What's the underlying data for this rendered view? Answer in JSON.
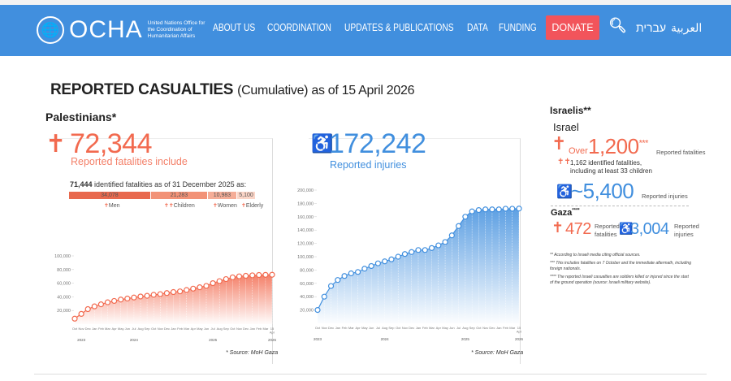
{
  "header": {
    "logo_text": "OCHA",
    "logo_subtitle": "United Nations Office for the Coordination of Humanitarian Affairs",
    "nav": [
      "ABOUT US",
      "COORDINATION",
      "UPDATES & PUBLICATIONS",
      "DATA",
      "FUNDING"
    ],
    "donate": "DONATE",
    "lang_he": "עברית",
    "lang_ar": "العربية"
  },
  "title": {
    "main": "REPORTED CASUALTIES",
    "suffix": "(Cumulative) as of 15 April 2026"
  },
  "palestinians": {
    "heading": "Palestinians*",
    "fatalities": "72,344",
    "fatalities_label": "Reported fatalities include",
    "injuries": "172,242",
    "injuries_label": "Reported injuries",
    "identified_bold": "71,444",
    "identified_text": "identified fatalities as of 31 December 2025 as:",
    "breakdown": [
      {
        "label": "Men",
        "value": "34,078",
        "color": "#e8694e"
      },
      {
        "label": "Children",
        "value": "21,283",
        "color": "#f29277"
      },
      {
        "label": "Women",
        "value": "10,983",
        "color": "#f5ad97"
      },
      {
        "label": "Elderly",
        "value": "5,100",
        "color": "#fbd5c7"
      }
    ],
    "source": "* Source: MoH Gaza"
  },
  "israelis": {
    "heading": "Israelis**",
    "israel": "Israel",
    "over": "Over",
    "fatalities": "1,200",
    "fatalities_sup": "***",
    "fatalities_label": "Reported fatalities",
    "identified": "1,162 identified fatalities,",
    "identified2": "including at least 33 children",
    "injuries": "~5,400",
    "injuries_label": "Reported injuries",
    "gaza": "Gaza",
    "gaza_sup": "****",
    "gaza_fatalities": "472",
    "gaza_fatalities_label": "Reported fatalities",
    "gaza_injuries": "3,004",
    "gaza_injuries_label": "Reported injuries",
    "notes": [
      "** According to Israeli media citing official sources.",
      "*** This includes fatalities on 7 October and the immediate aftermath, including foreign nationals.",
      "**** The reported Israeli casualties are soldiers killed or injured since the start of the ground operation (source: Israeli military website)."
    ]
  },
  "chart_data": [
    {
      "type": "area",
      "series_color": "#f26a4f",
      "ylim": [
        0,
        100000
      ],
      "yticks": [
        "20,000",
        "40,000",
        "60,000",
        "80,000",
        "100,000"
      ],
      "categories": [
        "Oct",
        "Nov",
        "Dec",
        "Jan",
        "Feb",
        "Mar",
        "Apr",
        "May",
        "Jun",
        "Jul",
        "Aug",
        "Sep",
        "Oct",
        "Nov",
        "Dec",
        "Jan",
        "Feb",
        "Mar",
        "Apr",
        "May",
        "Jun",
        "Jul",
        "Aug",
        "Sep",
        "Oct",
        "Nov",
        "Dec",
        "Jan",
        "Feb",
        "Mar",
        "15 Apr"
      ],
      "years": [
        {
          "label": "2023",
          "index": 1
        },
        {
          "label": "2024",
          "index": 9
        },
        {
          "label": "2025",
          "index": 21
        },
        {
          "label": "2026",
          "index": 30
        }
      ],
      "values": [
        8000,
        15000,
        22000,
        26000,
        29000,
        32000,
        34000,
        36000,
        37500,
        39000,
        40500,
        41500,
        43000,
        44000,
        45500,
        47000,
        48000,
        50000,
        52000,
        54000,
        56000,
        60000,
        63000,
        66000,
        68500,
        70000,
        70800,
        71500,
        72000,
        72200,
        72344
      ]
    },
    {
      "type": "area",
      "series_color": "#418fde",
      "ylim": [
        0,
        200000
      ],
      "yticks": [
        "20,000",
        "40,000",
        "60,000",
        "80,000",
        "100,000",
        "120,000",
        "140,000",
        "160,000",
        "180,000",
        "200,000"
      ],
      "categories": [
        "Oct",
        "Nov",
        "Dec",
        "Jan",
        "Feb",
        "Mar",
        "Apr",
        "May",
        "Jun",
        "Jul",
        "Aug",
        "Sep",
        "Oct",
        "Nov",
        "Dec",
        "Jan",
        "Feb",
        "Mar",
        "Apr",
        "May",
        "Jun",
        "Jul",
        "Aug",
        "Sep",
        "Oct",
        "Nov",
        "Dec",
        "Jan",
        "Feb",
        "Mar",
        "15 Apr"
      ],
      "years": [
        {
          "label": "2023",
          "index": 0
        },
        {
          "label": "2024",
          "index": 10
        },
        {
          "label": "2025",
          "index": 22
        },
        {
          "label": "2026",
          "index": 30
        }
      ],
      "values": [
        20000,
        40000,
        56000,
        65000,
        71000,
        75000,
        77000,
        82000,
        86000,
        90000,
        93000,
        96000,
        100000,
        104000,
        107000,
        110000,
        110000,
        113000,
        117000,
        122000,
        132000,
        146000,
        160000,
        168000,
        170000,
        171000,
        171000,
        171000,
        172000,
        172000,
        172242
      ]
    }
  ]
}
